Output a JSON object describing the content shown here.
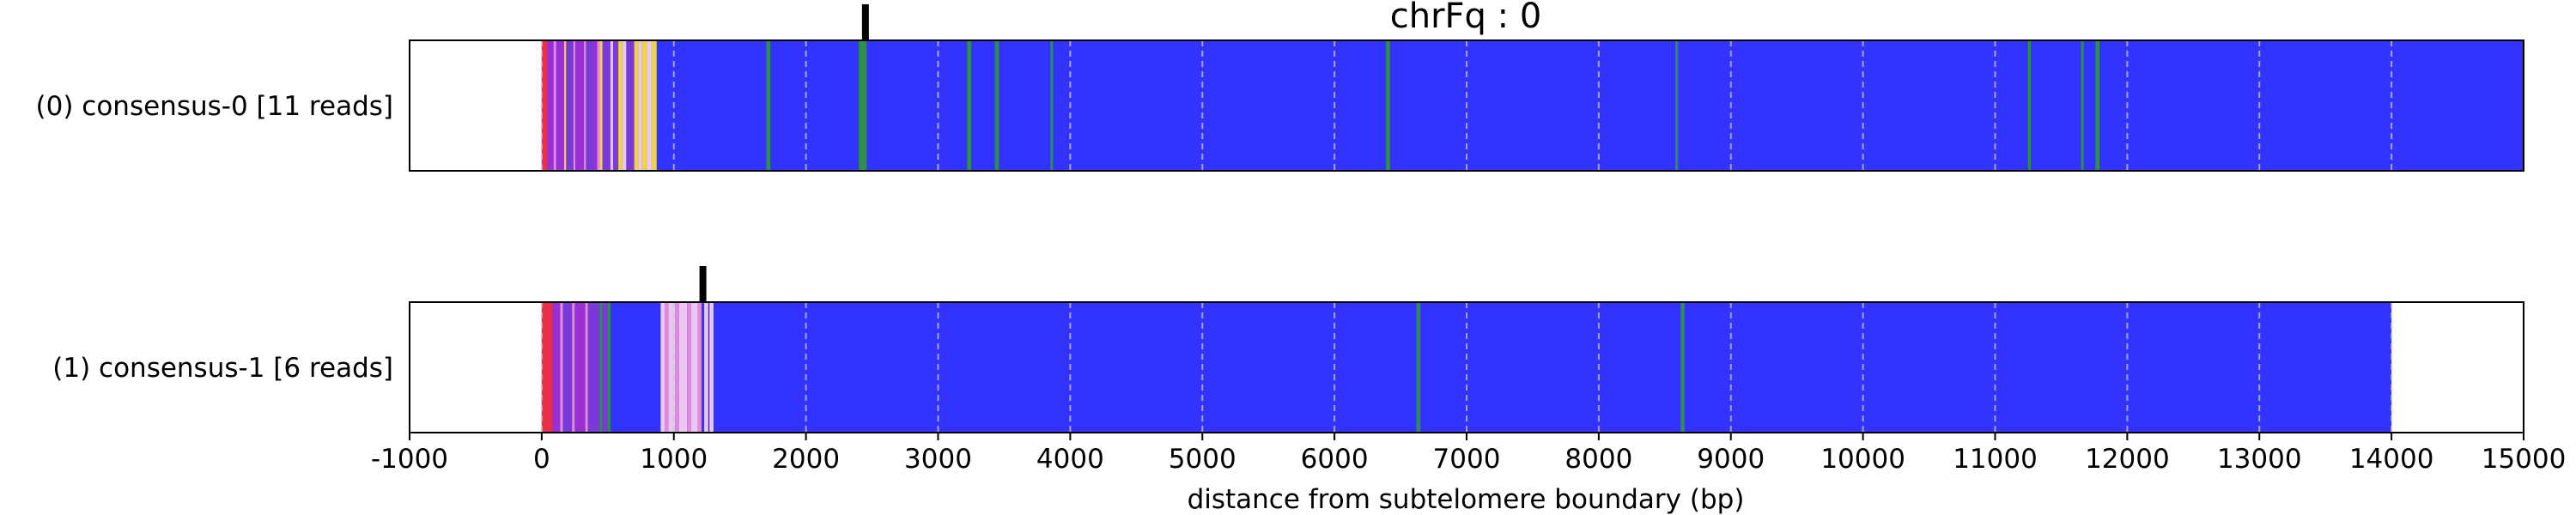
{
  "chart_data": {
    "type": "track",
    "title": "chrFq : 0",
    "xlabel": "distance from subtelomere boundary (bp)",
    "xlim": [
      -1000,
      15000
    ],
    "xticks": [
      -1000,
      0,
      1000,
      2000,
      3000,
      4000,
      5000,
      6000,
      7000,
      8000,
      9000,
      10000,
      11000,
      12000,
      13000,
      14000,
      15000
    ],
    "grid": "vertical dashed at ticks",
    "colors": {
      "background_repeat": "#3333ff",
      "telomere": "#e8304a",
      "green_kmer": "#2f8f4a",
      "purple_kmer": "#9a2fd6",
      "violet_kmer": "#7a3ad8",
      "pink_kmer": "#e08ad8",
      "light_kmer": "#e8c8f0",
      "yellow_kmer": "#f0d24a",
      "marker": "#000000"
    },
    "tracks": [
      {
        "label": "(0) consensus-0 [11 reads]",
        "extent": [
          0,
          15000
        ],
        "marker_x": 2450,
        "features": [
          {
            "start": 0,
            "end": 40,
            "kind": "telomere"
          },
          {
            "start": 40,
            "end": 90,
            "kind": "purple_kmer"
          },
          {
            "start": 90,
            "end": 110,
            "kind": "pink_kmer"
          },
          {
            "start": 110,
            "end": 170,
            "kind": "purple_kmer"
          },
          {
            "start": 170,
            "end": 185,
            "kind": "yellow_kmer"
          },
          {
            "start": 185,
            "end": 240,
            "kind": "violet_kmer"
          },
          {
            "start": 240,
            "end": 255,
            "kind": "pink_kmer"
          },
          {
            "start": 255,
            "end": 320,
            "kind": "purple_kmer"
          },
          {
            "start": 320,
            "end": 335,
            "kind": "pink_kmer"
          },
          {
            "start": 335,
            "end": 390,
            "kind": "violet_kmer"
          },
          {
            "start": 390,
            "end": 420,
            "kind": "purple_kmer"
          },
          {
            "start": 420,
            "end": 440,
            "kind": "pink_kmer"
          },
          {
            "start": 440,
            "end": 460,
            "kind": "yellow_kmer"
          },
          {
            "start": 460,
            "end": 520,
            "kind": "violet_kmer"
          },
          {
            "start": 520,
            "end": 540,
            "kind": "light_kmer"
          },
          {
            "start": 540,
            "end": 580,
            "kind": "violet_kmer"
          },
          {
            "start": 580,
            "end": 610,
            "kind": "yellow_kmer"
          },
          {
            "start": 610,
            "end": 640,
            "kind": "light_kmer"
          },
          {
            "start": 640,
            "end": 700,
            "kind": "violet_kmer"
          },
          {
            "start": 700,
            "end": 730,
            "kind": "yellow_kmer"
          },
          {
            "start": 730,
            "end": 760,
            "kind": "light_kmer"
          },
          {
            "start": 760,
            "end": 800,
            "kind": "yellow_kmer"
          },
          {
            "start": 800,
            "end": 830,
            "kind": "light_kmer"
          },
          {
            "start": 830,
            "end": 870,
            "kind": "yellow_kmer"
          },
          {
            "start": 1700,
            "end": 1730,
            "kind": "green_kmer"
          },
          {
            "start": 2400,
            "end": 2460,
            "kind": "green_kmer"
          },
          {
            "start": 3220,
            "end": 3250,
            "kind": "green_kmer"
          },
          {
            "start": 3430,
            "end": 3460,
            "kind": "green_kmer"
          },
          {
            "start": 3850,
            "end": 3870,
            "kind": "green_kmer"
          },
          {
            "start": 6390,
            "end": 6420,
            "kind": "green_kmer"
          },
          {
            "start": 8580,
            "end": 8600,
            "kind": "green_kmer"
          },
          {
            "start": 11250,
            "end": 11270,
            "kind": "green_kmer"
          },
          {
            "start": 11650,
            "end": 11670,
            "kind": "green_kmer"
          },
          {
            "start": 11760,
            "end": 11790,
            "kind": "green_kmer"
          }
        ]
      },
      {
        "label": "(1) consensus-1 [6 reads]",
        "extent": [
          0,
          14000
        ],
        "marker_x": 1220,
        "features": [
          {
            "start": 0,
            "end": 80,
            "kind": "telomere"
          },
          {
            "start": 80,
            "end": 140,
            "kind": "purple_kmer"
          },
          {
            "start": 140,
            "end": 160,
            "kind": "pink_kmer"
          },
          {
            "start": 160,
            "end": 230,
            "kind": "violet_kmer"
          },
          {
            "start": 230,
            "end": 250,
            "kind": "pink_kmer"
          },
          {
            "start": 250,
            "end": 330,
            "kind": "purple_kmer"
          },
          {
            "start": 330,
            "end": 350,
            "kind": "pink_kmer"
          },
          {
            "start": 350,
            "end": 440,
            "kind": "violet_kmer"
          },
          {
            "start": 440,
            "end": 460,
            "kind": "green_kmer"
          },
          {
            "start": 460,
            "end": 500,
            "kind": "violet_kmer"
          },
          {
            "start": 500,
            "end": 520,
            "kind": "green_kmer"
          },
          {
            "start": 900,
            "end": 930,
            "kind": "light_kmer"
          },
          {
            "start": 930,
            "end": 960,
            "kind": "pink_kmer"
          },
          {
            "start": 960,
            "end": 1010,
            "kind": "light_kmer"
          },
          {
            "start": 1010,
            "end": 1040,
            "kind": "pink_kmer"
          },
          {
            "start": 1040,
            "end": 1100,
            "kind": "light_kmer"
          },
          {
            "start": 1100,
            "end": 1130,
            "kind": "pink_kmer"
          },
          {
            "start": 1130,
            "end": 1180,
            "kind": "light_kmer"
          },
          {
            "start": 1180,
            "end": 1210,
            "kind": "pink_kmer"
          },
          {
            "start": 1230,
            "end": 1260,
            "kind": "light_kmer"
          },
          {
            "start": 1270,
            "end": 1300,
            "kind": "light_kmer"
          },
          {
            "start": 6620,
            "end": 6650,
            "kind": "green_kmer"
          },
          {
            "start": 8620,
            "end": 8650,
            "kind": "green_kmer"
          }
        ]
      }
    ]
  }
}
